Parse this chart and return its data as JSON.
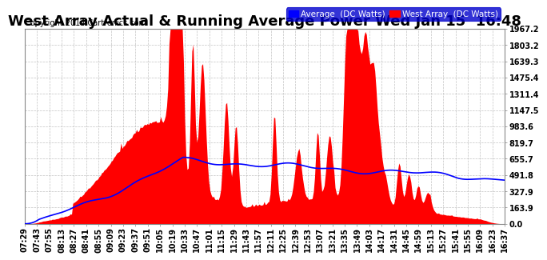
{
  "title": "West Array Actual & Running Average Power Wed Jan 15  16:48",
  "copyright": "Copyright 2014 Cartronics.com",
  "legend_avg": "Average  (DC Watts)",
  "legend_west": "West Array  (DC Watts)",
  "yticks": [
    0.0,
    163.9,
    327.9,
    491.8,
    655.7,
    819.7,
    983.6,
    1147.5,
    1311.4,
    1475.4,
    1639.3,
    1803.2,
    1967.2
  ],
  "ymax": 1967.2,
  "ymin": 0.0,
  "xtick_labels": [
    "07:29",
    "07:43",
    "07:55",
    "08:13",
    "08:27",
    "08:41",
    "08:55",
    "09:09",
    "09:23",
    "09:37",
    "09:51",
    "10:05",
    "10:19",
    "10:33",
    "10:47",
    "11:01",
    "11:15",
    "11:29",
    "11:43",
    "11:57",
    "12:11",
    "12:25",
    "12:39",
    "12:53",
    "13:07",
    "13:21",
    "13:35",
    "13:49",
    "14:03",
    "14:17",
    "14:31",
    "14:45",
    "14:59",
    "15:13",
    "15:27",
    "15:41",
    "15:55",
    "16:09",
    "16:23",
    "16:37"
  ],
  "bg_color": "#ffffff",
  "plot_bg_color": "#ffffff",
  "grid_color": "#aaaaaa",
  "fill_color": "#ff0000",
  "avg_line_color": "#0000ff",
  "title_fontsize": 13,
  "copyright_fontsize": 7,
  "tick_fontsize": 7,
  "legend_fontsize": 7.5
}
